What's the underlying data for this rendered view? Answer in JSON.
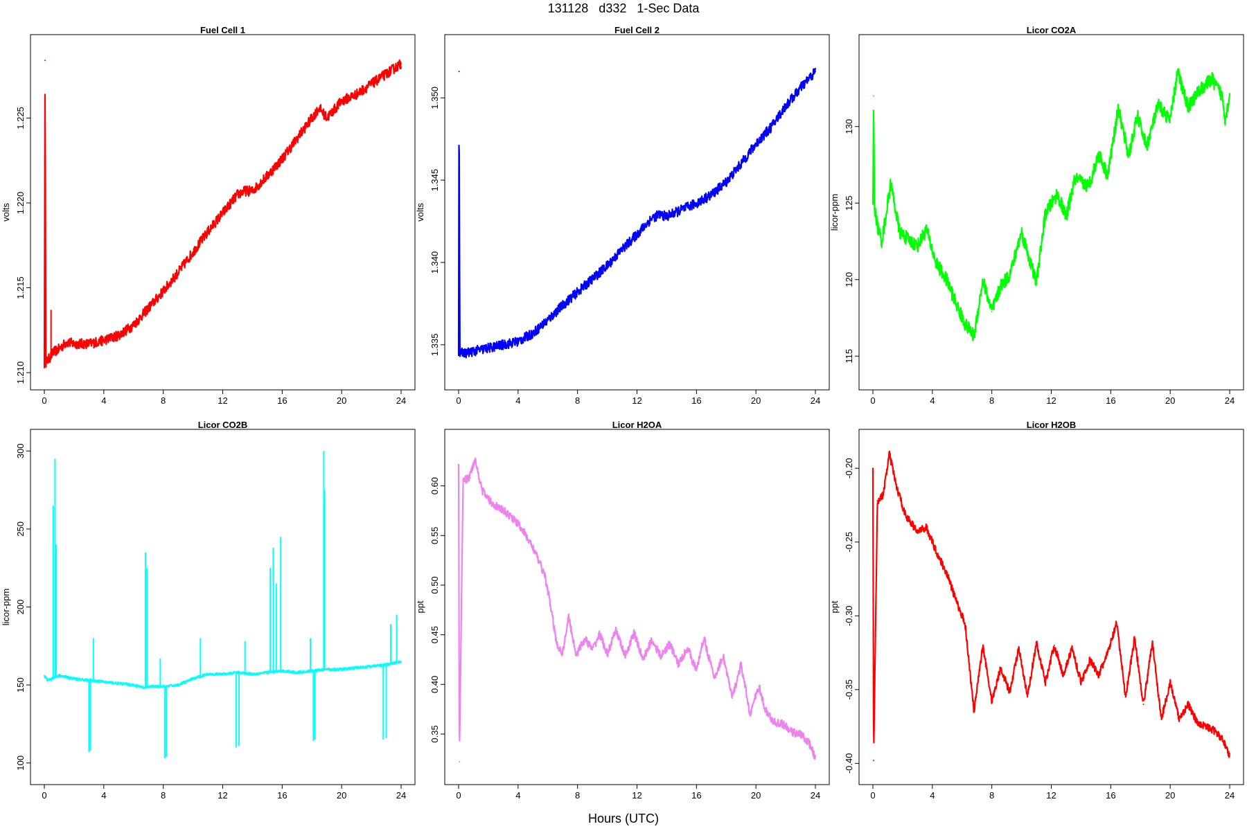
{
  "page_title": "131128   d332   1-Sec Data",
  "x_caption": "Hours (UTC)",
  "chart_data": [
    {
      "type": "line",
      "title": "Fuel Cell 1",
      "ylabel": "volts",
      "color": "#ff0000",
      "xlim": [
        0,
        24
      ],
      "ylim": [
        1.2098,
        1.2291
      ],
      "xticks": [
        0,
        4,
        8,
        12,
        16,
        20,
        24
      ],
      "yticks": [
        1.21,
        1.215,
        1.22,
        1.225
      ],
      "ytick_labels": [
        "1.210",
        "1.215",
        "1.220",
        "1.225"
      ],
      "noise": 0.0003,
      "x": [
        0,
        0.05,
        0.1,
        0.3,
        0.6,
        1,
        1.5,
        2,
        3,
        4,
        5,
        6,
        7,
        8,
        9,
        10,
        11,
        12,
        13,
        13.5,
        14,
        15,
        16,
        17,
        18,
        18.5,
        19,
        20,
        21,
        22,
        23,
        24
      ],
      "y": [
        1.2105,
        1.2284,
        1.2106,
        1.2108,
        1.2112,
        1.2114,
        1.2118,
        1.2117,
        1.2117,
        1.2119,
        1.2122,
        1.2128,
        1.2138,
        1.2148,
        1.2159,
        1.2171,
        1.2183,
        1.2194,
        1.2205,
        1.2207,
        1.2207,
        1.2216,
        1.2226,
        1.2238,
        1.225,
        1.2256,
        1.225,
        1.226,
        1.2264,
        1.227,
        1.2276,
        1.2282
      ],
      "spikes": [
        {
          "x": 0.45,
          "y": 1.2137
        }
      ]
    },
    {
      "type": "line",
      "title": "Fuel Cell 2",
      "ylabel": "volts",
      "color": "#0000ff",
      "xlim": [
        0,
        24
      ],
      "ylim": [
        1.3331,
        1.353
      ],
      "xticks": [
        0,
        4,
        8,
        12,
        16,
        20,
        24
      ],
      "yticks": [
        1.335,
        1.34,
        1.345,
        1.35
      ],
      "ytick_labels": [
        "1.335",
        "1.340",
        "1.345",
        "1.350"
      ],
      "noise": 0.0003,
      "x": [
        0,
        0.03,
        0.08,
        0.5,
        1,
        2,
        3,
        4,
        5,
        6,
        7,
        8,
        9,
        10,
        11,
        12,
        13,
        13.5,
        14,
        15,
        16,
        17,
        18,
        19,
        20,
        21,
        22,
        23,
        24
      ],
      "y": [
        1.3346,
        1.3516,
        1.3345,
        1.3345,
        1.3346,
        1.3348,
        1.335,
        1.3352,
        1.3357,
        1.3365,
        1.3374,
        1.3382,
        1.339,
        1.3398,
        1.3408,
        1.3417,
        1.3427,
        1.3429,
        1.3428,
        1.3432,
        1.3436,
        1.3441,
        1.3449,
        1.346,
        1.3472,
        1.3482,
        1.3495,
        1.3506,
        1.3516
      ],
      "spikes": []
    },
    {
      "type": "line",
      "title": "Licor CO2A",
      "ylabel": "licor-ppm",
      "color": "#00ff00",
      "xlim": [
        0,
        24
      ],
      "ylim": [
        113.7,
        135.1
      ],
      "xticks": [
        0,
        4,
        8,
        12,
        16,
        20,
        24
      ],
      "yticks": [
        115,
        120,
        125,
        130
      ],
      "ytick_labels": [
        "115",
        "120",
        "125",
        "130"
      ],
      "noise": 0.45,
      "x": [
        0,
        0.05,
        0.1,
        0.3,
        0.6,
        1.2,
        1.8,
        2.4,
        3,
        3.6,
        4.2,
        5,
        5.6,
        6.2,
        6.8,
        7.4,
        8,
        8.6,
        9.2,
        10,
        10.6,
        11,
        11.6,
        12.4,
        13,
        13.6,
        14.5,
        15.2,
        15.8,
        16.5,
        17.2,
        17.8,
        18.4,
        19.2,
        20,
        20.5,
        21.2,
        22,
        22.8,
        23.5,
        23.7,
        24
      ],
      "y": [
        125,
        132,
        124.8,
        123.5,
        122.5,
        126.3,
        123.1,
        122.6,
        122.2,
        123.3,
        121.2,
        119.9,
        118.4,
        117.1,
        116.3,
        120,
        117.9,
        119.6,
        120.3,
        123.1,
        121.1,
        119.8,
        124.3,
        125.6,
        124.1,
        126.6,
        126.1,
        128.2,
        126.8,
        131.2,
        128.1,
        130.7,
        128.7,
        131.4,
        130.4,
        133.6,
        131.3,
        132.4,
        133.1,
        132.0,
        130.5,
        132.0
      ],
      "spikes": []
    },
    {
      "type": "line",
      "title": "Licor CO2B",
      "ylabel": "licor-ppm",
      "color": "#00ffff",
      "xlim": [
        0,
        24
      ],
      "ylim": [
        95,
        305
      ],
      "xticks": [
        0,
        4,
        8,
        12,
        16,
        20,
        24
      ],
      "yticks": [
        100,
        150,
        200,
        250,
        300
      ],
      "ytick_labels": [
        "100",
        "150",
        "200",
        "250",
        "300"
      ],
      "noise": 0.8,
      "x": [
        0,
        0.2,
        0.5,
        1,
        2,
        3,
        4,
        5,
        6,
        6.8,
        7,
        8,
        9,
        10,
        11,
        12,
        13,
        14,
        15,
        16,
        17,
        18,
        19,
        20,
        21,
        22,
        23,
        24
      ],
      "y": [
        156,
        153,
        154,
        156,
        154,
        153,
        152,
        151,
        150,
        148,
        149,
        149,
        150,
        154,
        157,
        157,
        158,
        157,
        158,
        159,
        158,
        159,
        160,
        160,
        161,
        162,
        163,
        165
      ],
      "spikes": [
        {
          "x": 0.6,
          "y": 265
        },
        {
          "x": 0.72,
          "y": 295
        },
        {
          "x": 0.8,
          "y": 240
        },
        {
          "x": 3.0,
          "y": 107
        },
        {
          "x": 3.1,
          "y": 108
        },
        {
          "x": 3.3,
          "y": 180
        },
        {
          "x": 6.8,
          "y": 235
        },
        {
          "x": 6.9,
          "y": 225
        },
        {
          "x": 7.8,
          "y": 167
        },
        {
          "x": 8.1,
          "y": 103
        },
        {
          "x": 8.2,
          "y": 104
        },
        {
          "x": 10.5,
          "y": 180
        },
        {
          "x": 12.9,
          "y": 110
        },
        {
          "x": 13.1,
          "y": 111
        },
        {
          "x": 13.5,
          "y": 178
        },
        {
          "x": 15.2,
          "y": 225
        },
        {
          "x": 15.4,
          "y": 238
        },
        {
          "x": 15.6,
          "y": 215
        },
        {
          "x": 15.9,
          "y": 245
        },
        {
          "x": 17.9,
          "y": 180
        },
        {
          "x": 18.1,
          "y": 114
        },
        {
          "x": 18.2,
          "y": 115
        },
        {
          "x": 18.8,
          "y": 300
        },
        {
          "x": 18.85,
          "y": 275
        },
        {
          "x": 22.8,
          "y": 115
        },
        {
          "x": 23.0,
          "y": 116
        },
        {
          "x": 23.3,
          "y": 189
        },
        {
          "x": 23.7,
          "y": 195
        }
      ]
    },
    {
      "type": "line",
      "title": "Licor H2OA",
      "ylabel": "ppt",
      "color": "#ee82ee",
      "xlim": [
        0,
        24
      ],
      "ylim": [
        0.313,
        0.643
      ],
      "xticks": [
        0,
        4,
        8,
        12,
        16,
        20,
        24
      ],
      "yticks": [
        0.35,
        0.4,
        0.45,
        0.5,
        0.55,
        0.6
      ],
      "ytick_labels": [
        "0.35",
        "0.40",
        "0.45",
        "0.50",
        "0.55",
        "0.60"
      ],
      "noise": 0.004,
      "x": [
        0,
        0.05,
        0.3,
        0.7,
        1.1,
        1.6,
        2.2,
        3,
        3.6,
        4.2,
        5,
        5.8,
        6.2,
        6.6,
        7,
        7.4,
        7.9,
        8.5,
        9,
        9.5,
        10,
        10.6,
        11.2,
        11.8,
        12.4,
        13,
        13.6,
        14.2,
        14.8,
        15.4,
        16,
        16.5,
        17.2,
        17.8,
        18.4,
        19,
        19.6,
        20.2,
        20.6,
        21.2,
        21.8,
        22.4,
        23,
        23.6,
        24
      ],
      "y": [
        0.62,
        0.322,
        0.605,
        0.608,
        0.627,
        0.595,
        0.583,
        0.575,
        0.568,
        0.558,
        0.538,
        0.51,
        0.478,
        0.44,
        0.432,
        0.468,
        0.43,
        0.446,
        0.435,
        0.451,
        0.43,
        0.455,
        0.428,
        0.452,
        0.425,
        0.445,
        0.428,
        0.441,
        0.42,
        0.437,
        0.414,
        0.447,
        0.406,
        0.429,
        0.386,
        0.42,
        0.37,
        0.398,
        0.375,
        0.362,
        0.36,
        0.352,
        0.35,
        0.34,
        0.326
      ],
      "spikes": []
    },
    {
      "type": "line",
      "title": "Licor H2OB",
      "ylabel": "ppt",
      "color": "#ff0000",
      "xlim": [
        0,
        24
      ],
      "ylim": [
        -0.405,
        -0.183
      ],
      "xticks": [
        0,
        4,
        8,
        12,
        16,
        20,
        24
      ],
      "yticks": [
        -0.4,
        -0.35,
        -0.3,
        -0.25,
        -0.2
      ],
      "ytick_labels": [
        "-0.40",
        "-0.35",
        "-0.30",
        "-0.25",
        "-0.20"
      ],
      "noise": 0.0025,
      "x": [
        0,
        0.05,
        0.3,
        0.7,
        1.1,
        1.6,
        2.2,
        3,
        3.6,
        4.2,
        5,
        5.6,
        6.2,
        6.8,
        7.4,
        8,
        8.6,
        9.2,
        9.8,
        10.4,
        11,
        11.6,
        12.2,
        12.8,
        13.4,
        14,
        14.6,
        15.2,
        15.8,
        16.4,
        17,
        17.6,
        18.2,
        18.8,
        19.4,
        20,
        20.6,
        21.2,
        21.8,
        22.4,
        23,
        23.6,
        24
      ],
      "y": [
        -0.2,
        -0.398,
        -0.222,
        -0.218,
        -0.19,
        -0.213,
        -0.232,
        -0.243,
        -0.24,
        -0.255,
        -0.272,
        -0.29,
        -0.305,
        -0.365,
        -0.32,
        -0.358,
        -0.335,
        -0.352,
        -0.322,
        -0.355,
        -0.318,
        -0.345,
        -0.32,
        -0.34,
        -0.322,
        -0.345,
        -0.33,
        -0.34,
        -0.325,
        -0.305,
        -0.355,
        -0.315,
        -0.36,
        -0.318,
        -0.37,
        -0.345,
        -0.37,
        -0.36,
        -0.372,
        -0.375,
        -0.378,
        -0.385,
        -0.395
      ],
      "spikes": []
    }
  ]
}
